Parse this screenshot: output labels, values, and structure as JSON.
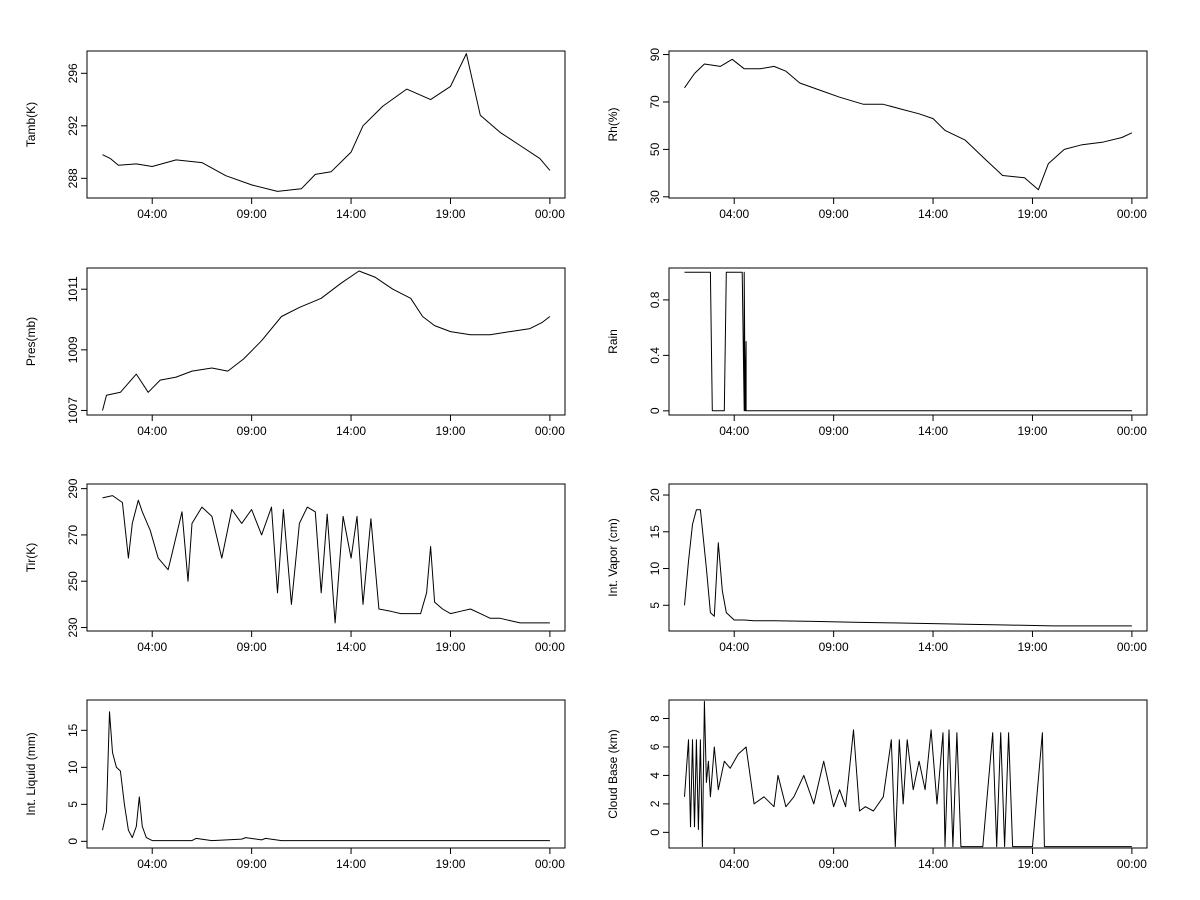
{
  "x_ticks": [
    "04:00",
    "09:00",
    "14:00",
    "19:00",
    "00:00"
  ],
  "chart_data": [
    {
      "type": "line",
      "ylabel": "Tamb(K)",
      "ylim": [
        286.5,
        297.7
      ],
      "yticks": [
        288,
        292,
        296
      ],
      "x_hours": [
        1.5,
        1.9,
        2.3,
        3.2,
        4.0,
        5.2,
        6.5,
        7.7,
        9.0,
        10.3,
        11.5,
        12.2,
        13.0,
        14.0,
        14.6,
        15.6,
        16.8,
        18.0,
        19.0,
        19.8,
        20.5,
        21.5,
        22.5,
        23.5,
        24.0
      ],
      "values": [
        289.8,
        289.5,
        289.0,
        289.1,
        288.9,
        289.4,
        289.2,
        288.2,
        287.5,
        287.0,
        287.2,
        288.3,
        288.5,
        290.0,
        292.0,
        293.5,
        294.8,
        294.0,
        295.0,
        297.5,
        292.8,
        291.5,
        290.5,
        289.5,
        288.6
      ]
    },
    {
      "type": "line",
      "ylabel": "Rh(%)",
      "ylim": [
        29.5,
        91.5
      ],
      "yticks": [
        30,
        50,
        70,
        90
      ],
      "x_hours": [
        1.5,
        2.0,
        2.5,
        3.3,
        3.9,
        4.5,
        5.3,
        6.0,
        6.6,
        7.3,
        8.3,
        9.3,
        10.5,
        11.5,
        12.4,
        13.3,
        14.0,
        14.6,
        15.6,
        16.6,
        17.5,
        18.6,
        19.3,
        19.8,
        20.6,
        21.5,
        22.5,
        23.5,
        24.0
      ],
      "values": [
        76,
        82,
        86,
        85,
        88,
        84,
        84,
        85,
        83,
        78,
        75,
        72,
        69,
        69,
        67,
        65,
        63,
        58,
        54,
        46,
        39,
        38,
        33,
        44,
        50,
        52,
        53,
        55,
        57
      ]
    },
    {
      "type": "line",
      "ylabel": "Pres(mb)",
      "ylim": [
        1006.85,
        1011.7
      ],
      "yticks": [
        1007,
        1009,
        1011
      ],
      "x_hours": [
        1.5,
        1.7,
        2.4,
        3.2,
        3.8,
        4.4,
        5.2,
        6.0,
        7.0,
        7.8,
        8.6,
        9.5,
        10.5,
        11.4,
        12.5,
        13.5,
        14.4,
        15.2,
        16.1,
        17.0,
        17.6,
        18.2,
        19.0,
        20.0,
        21.0,
        22.0,
        23.0,
        23.6,
        24.0
      ],
      "values": [
        1007.0,
        1007.5,
        1007.6,
        1008.2,
        1007.6,
        1008.0,
        1008.1,
        1008.3,
        1008.4,
        1008.3,
        1008.7,
        1009.3,
        1010.1,
        1010.4,
        1010.7,
        1011.2,
        1011.6,
        1011.4,
        1011.0,
        1010.7,
        1010.1,
        1009.8,
        1009.6,
        1009.5,
        1009.5,
        1009.6,
        1009.7,
        1009.9,
        1010.1
      ]
    },
    {
      "type": "line",
      "ylabel": "Rain",
      "ylim": [
        -0.03,
        1.03
      ],
      "yticks": [
        0.0,
        0.4,
        0.8
      ],
      "x_hours": [
        1.5,
        2.8,
        2.9,
        3.5,
        3.6,
        4.4,
        4.5,
        4.5,
        4.55,
        4.6,
        4.6,
        24.0
      ],
      "values": [
        1,
        1,
        0,
        0,
        1,
        1,
        0,
        1,
        0,
        0.5,
        0,
        0
      ]
    },
    {
      "type": "line",
      "ylabel": "Tir(K)",
      "ylim": [
        228.5,
        292
      ],
      "yticks": [
        230,
        250,
        270,
        290
      ],
      "x_hours": [
        1.5,
        2.0,
        2.5,
        2.8,
        3.0,
        3.3,
        3.5,
        3.9,
        4.3,
        4.8,
        5.0,
        5.5,
        5.8,
        6.0,
        6.5,
        7.0,
        7.5,
        8.0,
        8.5,
        9.0,
        9.5,
        10.0,
        10.3,
        10.6,
        11.0,
        11.4,
        11.8,
        12.2,
        12.5,
        12.8,
        13.2,
        13.6,
        14.0,
        14.3,
        14.6,
        15.0,
        15.4,
        16.0,
        16.5,
        17.0,
        17.5,
        17.8,
        18.0,
        18.2,
        18.6,
        19.0,
        19.5,
        20.0,
        20.5,
        21.0,
        21.5,
        22.0,
        22.5,
        23.0,
        23.5,
        24.0
      ],
      "values": [
        286,
        287,
        284,
        260,
        275,
        285,
        280,
        272,
        260,
        255,
        262,
        280,
        250,
        275,
        282,
        278,
        260,
        281,
        275,
        281,
        270,
        282,
        245,
        281,
        240,
        275,
        282,
        280,
        245,
        279,
        232,
        278,
        260,
        278,
        240,
        277,
        238,
        237,
        236,
        236,
        236,
        245,
        265,
        241,
        238,
        236,
        237,
        238,
        236,
        234,
        234,
        233,
        232,
        232,
        232,
        232
      ]
    },
    {
      "type": "line",
      "ylabel": "Int. Vapor (cm)",
      "ylim": [
        1.5,
        21.5
      ],
      "yticks": [
        5,
        10,
        15,
        20
      ],
      "x_hours": [
        1.5,
        1.7,
        1.9,
        2.1,
        2.3,
        2.6,
        2.8,
        3.0,
        3.2,
        3.4,
        3.6,
        3.8,
        4.0,
        4.5,
        5.0,
        6.0,
        8.0,
        10.0,
        12.0,
        14.0,
        16.0,
        18.0,
        20.0,
        22.0,
        24.0
      ],
      "values": [
        5,
        11,
        16,
        18,
        18,
        10,
        4,
        3.5,
        13.5,
        7,
        4,
        3.5,
        3.0,
        3.0,
        2.9,
        2.9,
        2.8,
        2.7,
        2.6,
        2.5,
        2.4,
        2.3,
        2.2,
        2.2,
        2.2
      ]
    },
    {
      "type": "line",
      "ylabel": "Int. Liquid (mm)",
      "ylim": [
        -0.9,
        19.1
      ],
      "yticks": [
        0,
        5,
        10,
        15
      ],
      "x_hours": [
        1.5,
        1.7,
        1.85,
        2.0,
        2.2,
        2.4,
        2.6,
        2.8,
        3.0,
        3.2,
        3.35,
        3.5,
        3.7,
        4.0,
        5.0,
        6.0,
        6.2,
        7.0,
        8.5,
        8.7,
        9.5,
        9.7,
        10.5,
        11.5,
        12.5,
        14.0,
        16.0,
        18.0,
        20.0,
        22.0,
        24.0
      ],
      "values": [
        1.5,
        4,
        17.5,
        12,
        10,
        9.5,
        5,
        1.5,
        0.5,
        2,
        6,
        2,
        0.5,
        0.1,
        0.1,
        0.1,
        0.4,
        0.1,
        0.3,
        0.5,
        0.2,
        0.4,
        0.1,
        0.1,
        0.1,
        0.1,
        0.1,
        0.1,
        0.1,
        0.1,
        0.1
      ]
    },
    {
      "type": "line",
      "ylabel": "Cloud Base (km)",
      "ylim": [
        -1.1,
        9.3
      ],
      "yticks": [
        0,
        2,
        4,
        6,
        8
      ],
      "x_hours": [
        1.5,
        1.7,
        1.8,
        1.9,
        2.0,
        2.1,
        2.2,
        2.3,
        2.4,
        2.5,
        2.6,
        2.7,
        2.8,
        3.0,
        3.2,
        3.5,
        3.8,
        4.2,
        4.6,
        5.0,
        5.5,
        6.0,
        6.2,
        6.6,
        7.0,
        7.5,
        8.0,
        8.5,
        9.0,
        9.3,
        9.6,
        10.0,
        10.3,
        10.6,
        11.0,
        11.5,
        11.9,
        12.1,
        12.3,
        12.5,
        12.7,
        13.0,
        13.3,
        13.6,
        13.9,
        14.2,
        14.5,
        14.6,
        14.8,
        15.0,
        15.2,
        15.4,
        15.6,
        16.0,
        16.5,
        17.0,
        17.2,
        17.4,
        17.6,
        17.8,
        18.0,
        19.0,
        19.5,
        19.6,
        19.7,
        20.0,
        22.0,
        24.0
      ],
      "values": [
        2.5,
        6.5,
        0.4,
        6.5,
        0.4,
        6.5,
        0.2,
        6.5,
        -1,
        9.2,
        3.5,
        5,
        2.5,
        6,
        3,
        5,
        4.5,
        5.5,
        6,
        2,
        2.5,
        1.8,
        4,
        1.8,
        2.5,
        4,
        2,
        5,
        1.8,
        3,
        1.8,
        7.2,
        1.5,
        1.8,
        1.5,
        2.5,
        6.5,
        -1,
        6.5,
        2,
        6.5,
        3,
        5,
        3,
        7.2,
        2,
        7,
        -1,
        7.2,
        -1,
        7,
        -1,
        -1,
        -1,
        -1,
        7,
        -1,
        7,
        -1,
        7,
        -1,
        -1,
        7,
        -1,
        -1,
        -1,
        -1,
        -1
      ]
    }
  ]
}
